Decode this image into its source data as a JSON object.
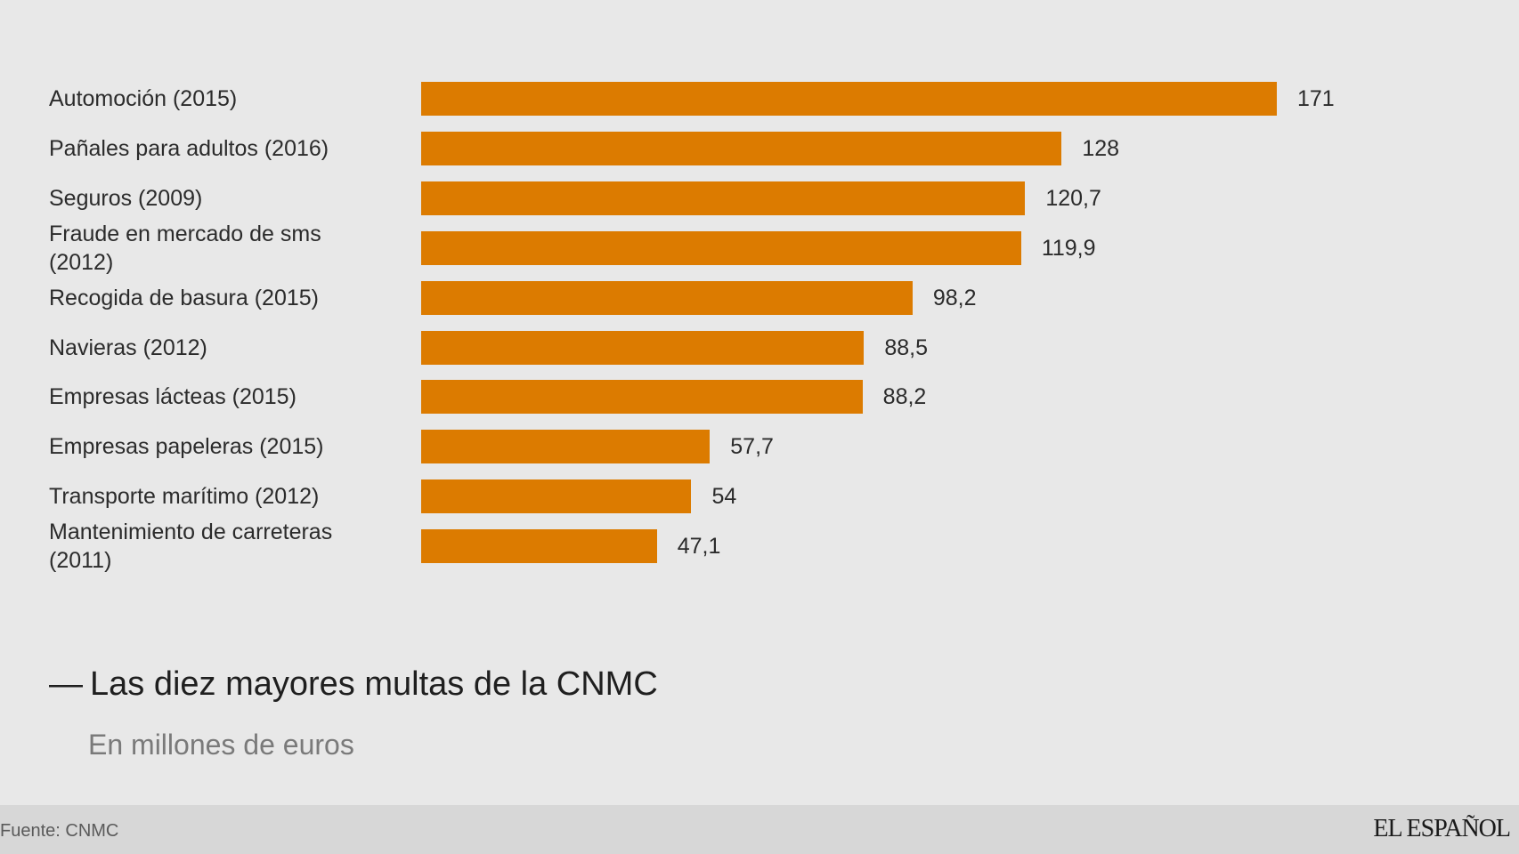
{
  "colors": {
    "bar": "#dc7b00",
    "background": "#e8e8e8",
    "footer": "#d7d7d7"
  },
  "chart_data": {
    "type": "bar",
    "orientation": "horizontal",
    "title": "— Las diez mayores multas de la CNMC",
    "subtitle": "En millones de euros",
    "categories": [
      "Automoción (2015)",
      "Pañales para adultos (2016)",
      "Seguros (2009)",
      "Fraude en mercado de sms (2012)",
      "Recogida de basura (2015)",
      "Navieras (2012)",
      "Empresas lácteas (2015)",
      "Empresas papeleras (2015)",
      "Transporte marítimo (2012)",
      "Mantenimiento de carreteras (2011)"
    ],
    "values": [
      171,
      128,
      120.7,
      119.9,
      98.2,
      88.5,
      88.2,
      57.7,
      54,
      47.1
    ],
    "value_labels": [
      "171",
      "128",
      "120,7",
      "119,9",
      "98,2",
      "88,5",
      "88,2",
      "57,7",
      "54",
      "47,1"
    ],
    "xlim": [
      0,
      171
    ],
    "grid": false,
    "legend": "none"
  },
  "title": {
    "dash": "—",
    "text": "Las diez mayores multas de la CNMC"
  },
  "subtitle": "En millones de euros",
  "footer": {
    "source": "Fuente: CNMC",
    "logo": "EL ESPAÑOL"
  }
}
